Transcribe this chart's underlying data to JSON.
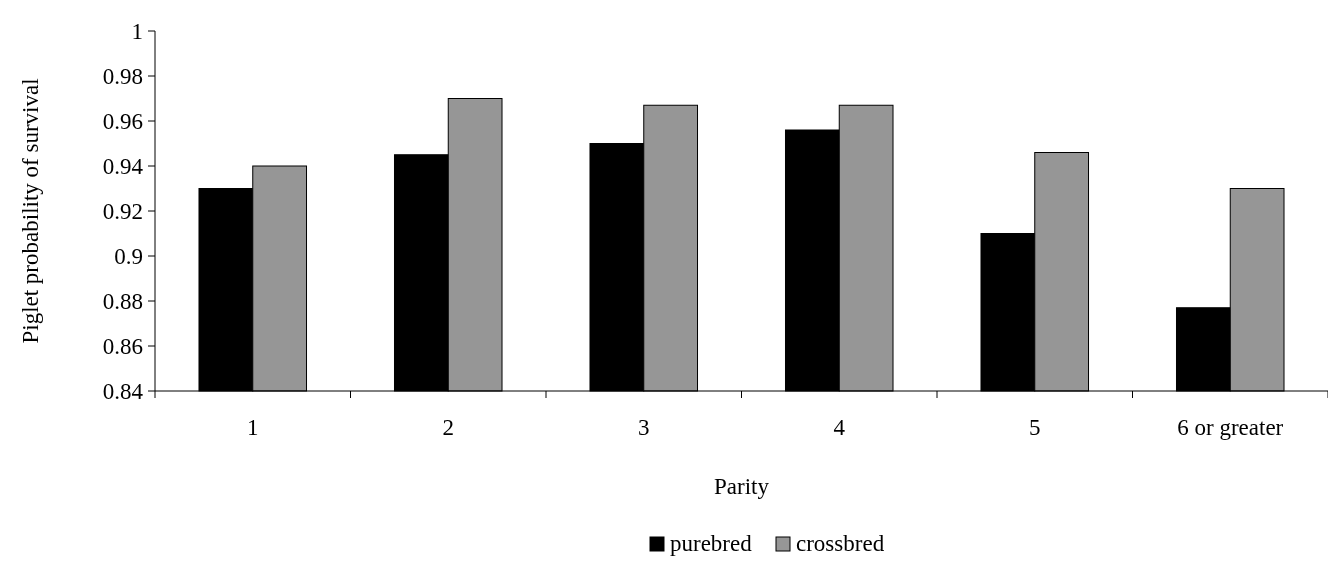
{
  "chart_data": {
    "type": "bar",
    "xlabel": "Parity",
    "ylabel": "Piglet probability of survival",
    "categories": [
      "1",
      "2",
      "3",
      "4",
      "5",
      "6 or greater"
    ],
    "series": [
      {
        "name": "purebred",
        "color": "#000000",
        "values": [
          0.93,
          0.945,
          0.95,
          0.956,
          0.91,
          0.877
        ]
      },
      {
        "name": "crossbred",
        "color": "#969696",
        "values": [
          0.94,
          0.97,
          0.967,
          0.967,
          0.946,
          0.93
        ]
      }
    ],
    "ylim": [
      0.84,
      1
    ],
    "yticks": [
      0.84,
      0.86,
      0.88,
      0.9,
      0.92,
      0.94,
      0.96,
      0.98,
      1
    ],
    "grid": false,
    "legend": "bottom"
  }
}
